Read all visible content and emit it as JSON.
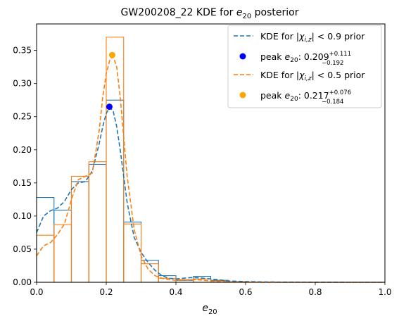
{
  "chart_data": {
    "type": "histogram",
    "title": "GW200208_22 KDE for e₂₀ posterior",
    "title_parts": {
      "main": "GW200208_22 KDE for ",
      "var": "e",
      "sub": "20",
      "tail": " posterior"
    },
    "xlabel": "e₂₀",
    "xlabel_parts": {
      "var": "e",
      "sub": "20"
    },
    "xlim": [
      0,
      1
    ],
    "ylim": [
      0,
      0.39
    ],
    "xticks": [
      "0.0",
      "0.2",
      "0.4",
      "0.6",
      "0.8",
      "1.0"
    ],
    "yticks": [
      "0.00",
      "0.05",
      "0.10",
      "0.15",
      "0.20",
      "0.25",
      "0.30",
      "0.35"
    ],
    "grid": false,
    "legend_position": "top-right",
    "bin_edges": [
      0,
      0.05,
      0.1,
      0.15,
      0.2,
      0.25,
      0.3,
      0.35,
      0.4,
      0.45,
      0.5,
      0.55,
      0.6,
      0.65,
      0.7,
      0.75,
      0.8,
      0.85,
      0.9,
      0.95,
      1.0
    ],
    "series": [
      {
        "name": "KDE for |χi,z| < 0.9 prior",
        "color": "#1f77b4",
        "hist": [
          0.128,
          0.109,
          0.152,
          0.178,
          0.275,
          0.091,
          0.033,
          0.01,
          0.003,
          0.009,
          0.003,
          0.001,
          0,
          0,
          0,
          0,
          0,
          0,
          0,
          0
        ],
        "kde_x": [
          0.0,
          0.02,
          0.04,
          0.06,
          0.08,
          0.1,
          0.12,
          0.14,
          0.16,
          0.18,
          0.19,
          0.2,
          0.21,
          0.22,
          0.23,
          0.24,
          0.25,
          0.26,
          0.28,
          0.3,
          0.32,
          0.34,
          0.36,
          0.38,
          0.4,
          0.42,
          0.44,
          0.46,
          0.48,
          0.5,
          0.52,
          0.55,
          0.6,
          0.65,
          0.7,
          0.8,
          0.9,
          1.0
        ],
        "kde_y": [
          0.075,
          0.1,
          0.108,
          0.112,
          0.122,
          0.14,
          0.15,
          0.152,
          0.168,
          0.21,
          0.235,
          0.255,
          0.264,
          0.258,
          0.235,
          0.2,
          0.16,
          0.12,
          0.068,
          0.045,
          0.03,
          0.018,
          0.01,
          0.006,
          0.005,
          0.006,
          0.007,
          0.007,
          0.006,
          0.005,
          0.004,
          0.002,
          0.001,
          0.0005,
          0.0002,
          0.0001,
          0.0,
          0.0
        ],
        "peak_label": "peak",
        "peak_value": "0.209",
        "peak_plus": "+0.111",
        "peak_minus": "−0.192",
        "peak": {
          "x": 0.209,
          "y": 0.265
        },
        "peak_color": "#0000ff"
      },
      {
        "name": "KDE for |χi,z| < 0.5 prior",
        "color": "#ff7f0e",
        "hist": [
          0.071,
          0.087,
          0.16,
          0.182,
          0.37,
          0.088,
          0.028,
          0.006,
          0.004,
          0.005,
          0.002,
          0.001,
          0,
          0,
          0,
          0,
          0,
          0,
          0,
          0
        ],
        "kde_x": [
          0.0,
          0.02,
          0.04,
          0.06,
          0.08,
          0.1,
          0.12,
          0.14,
          0.16,
          0.18,
          0.19,
          0.2,
          0.21,
          0.22,
          0.23,
          0.24,
          0.25,
          0.26,
          0.28,
          0.3,
          0.32,
          0.34,
          0.36,
          0.38,
          0.4,
          0.42,
          0.44,
          0.46,
          0.48,
          0.5,
          0.52,
          0.55,
          0.6,
          0.65,
          0.7,
          0.8,
          0.9,
          1.0
        ],
        "kde_y": [
          0.04,
          0.055,
          0.06,
          0.072,
          0.088,
          0.125,
          0.155,
          0.16,
          0.165,
          0.23,
          0.28,
          0.315,
          0.335,
          0.341,
          0.325,
          0.28,
          0.22,
          0.16,
          0.08,
          0.04,
          0.02,
          0.01,
          0.006,
          0.004,
          0.003,
          0.003,
          0.004,
          0.004,
          0.003,
          0.002,
          0.001,
          0.0005,
          0.0002,
          0.0001,
          0.0,
          0.0,
          0.0,
          0.0
        ],
        "peak_label": "peak",
        "peak_value": "0.217",
        "peak_plus": "+0.076",
        "peak_minus": "−0.184",
        "peak": {
          "x": 0.217,
          "y": 0.343
        },
        "peak_color": "#ffa500"
      }
    ]
  }
}
